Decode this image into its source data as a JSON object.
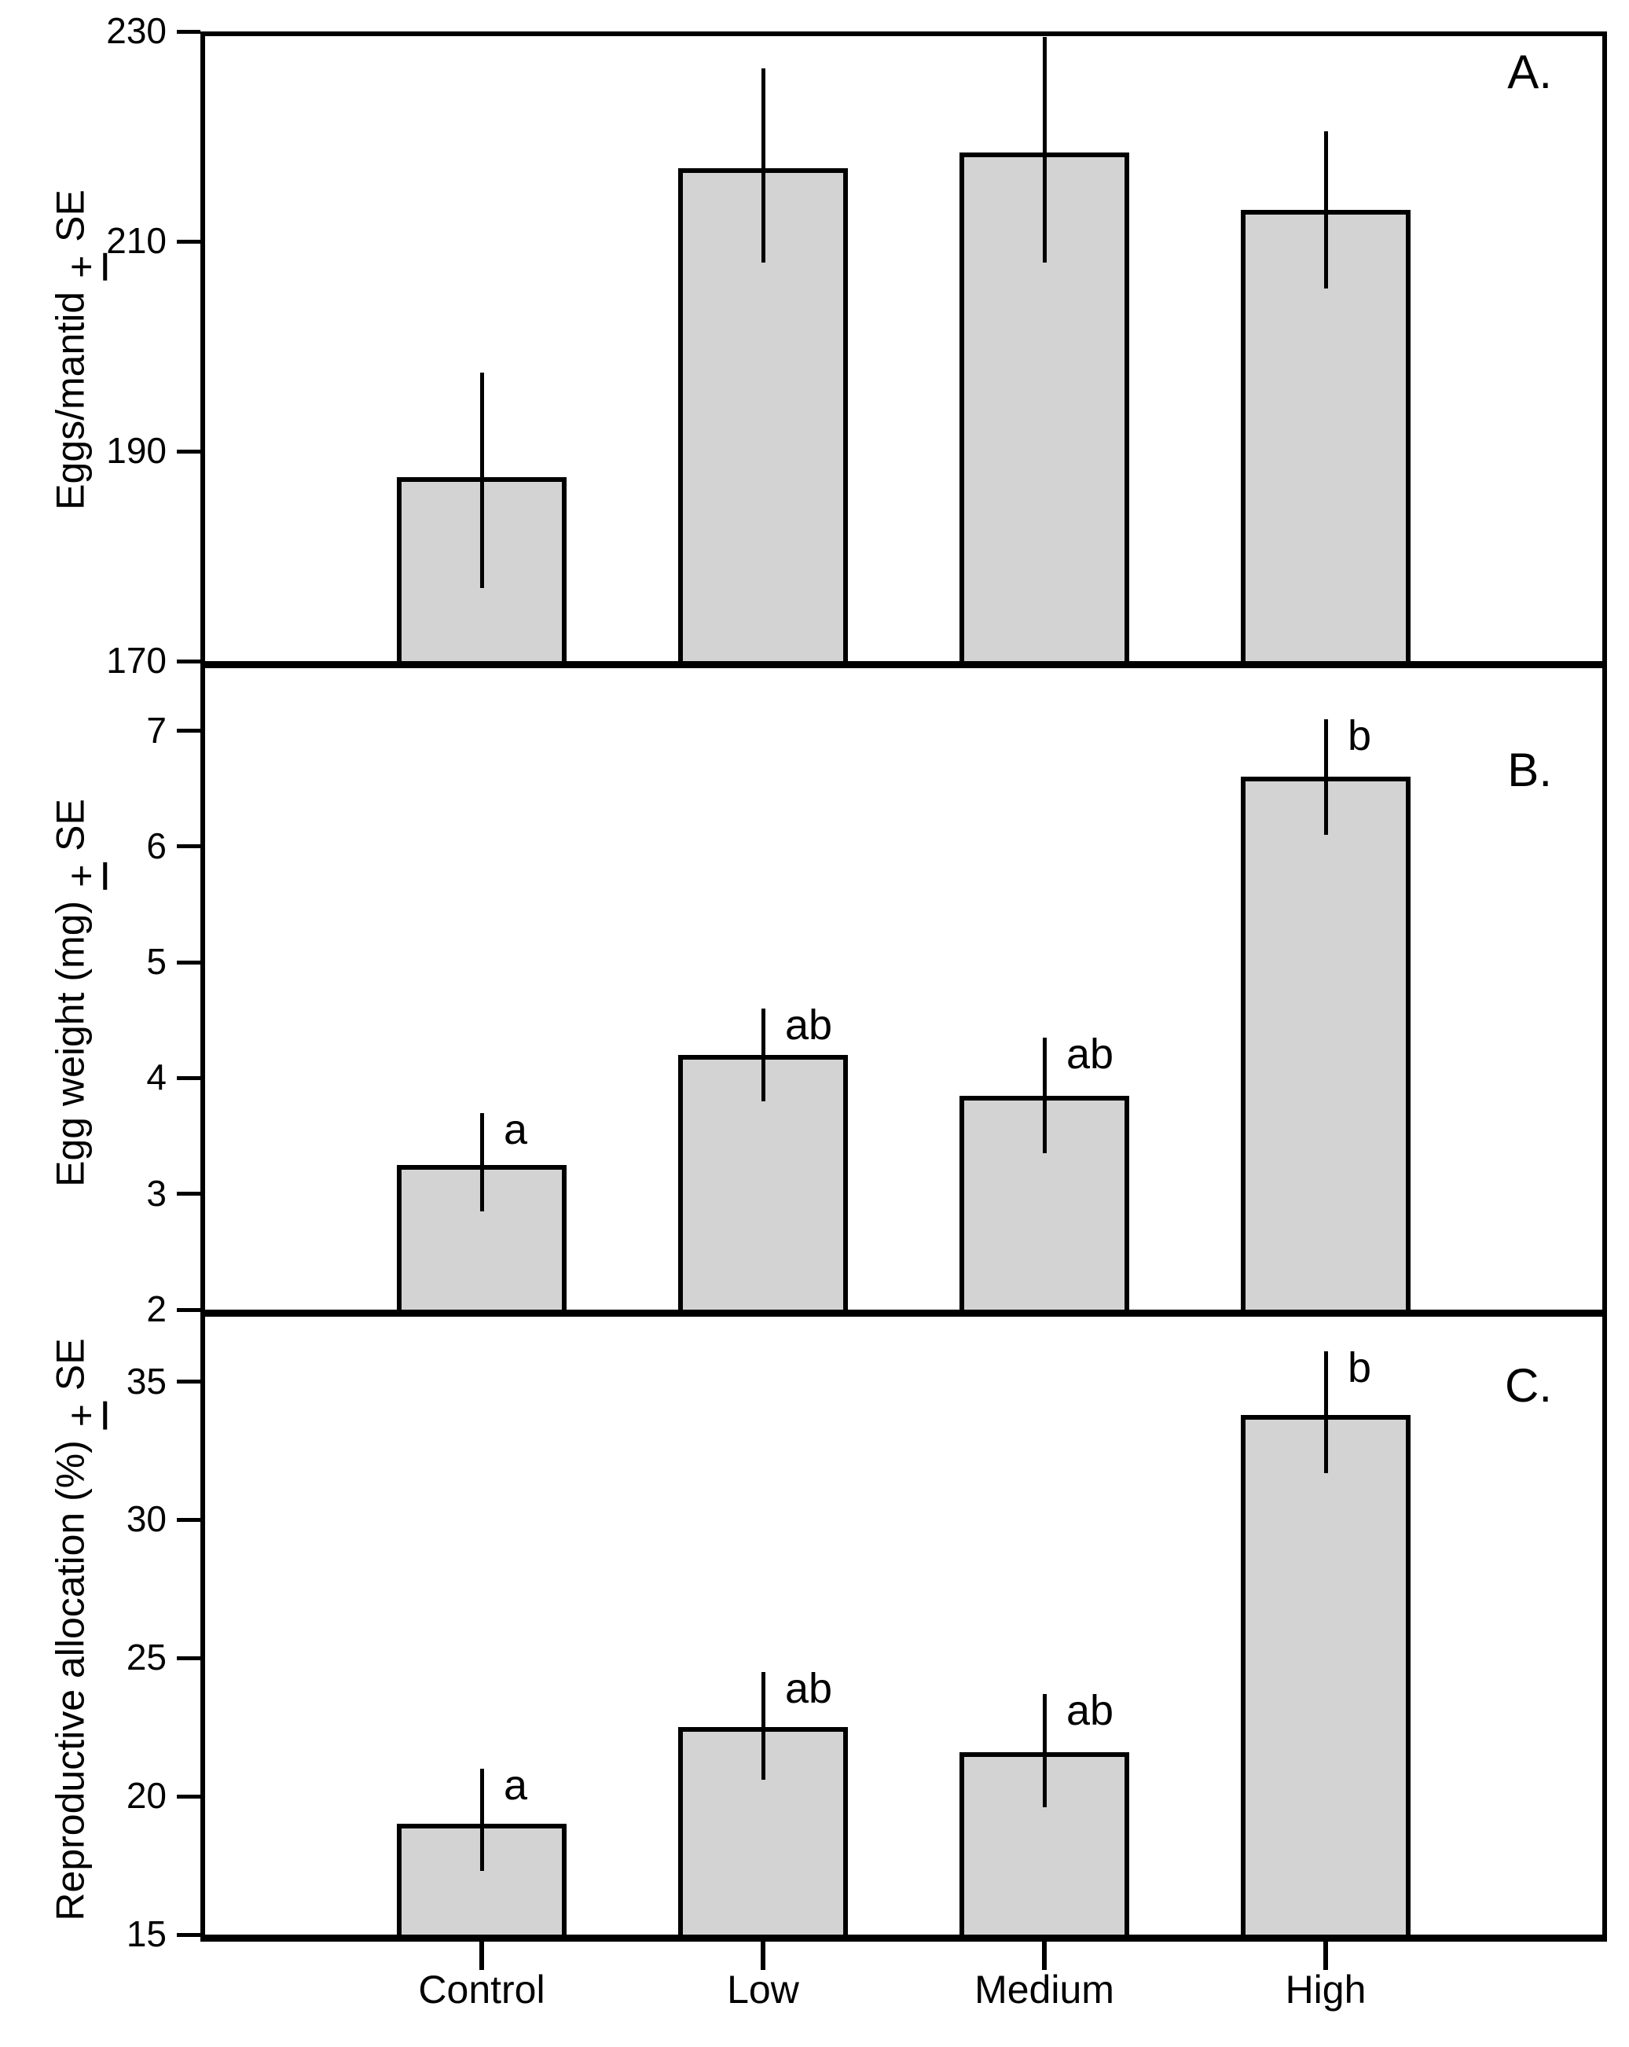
{
  "figure": {
    "background": "#ffffff",
    "bar_fill": "#d3d3d3",
    "bar_border": "#000000",
    "x_categories": [
      "Control",
      "Low",
      "Medium",
      "High"
    ]
  },
  "chart_data": [
    {
      "type": "bar",
      "panel_label": "A.",
      "ylabel": "Eggs/mantid",
      "ylabel_plusminus": "+",
      "ylabel_suffix": "SE",
      "xlabel": "",
      "ylim": [
        170,
        230
      ],
      "yticks": [
        230,
        210,
        190,
        170
      ],
      "categories": [
        "Control",
        "Low",
        "Medium",
        "High"
      ],
      "values": [
        187.5,
        217,
        218.5,
        213
      ],
      "se_upper": [
        197.5,
        226.5,
        229.5,
        220.5
      ],
      "se_lower": [
        177,
        208,
        208,
        205.5
      ],
      "sig_letters": [
        "",
        "",
        "",
        ""
      ]
    },
    {
      "type": "bar",
      "panel_label": "B.",
      "ylabel": "Egg weight (mg)",
      "ylabel_plusminus": "+",
      "ylabel_suffix": "SE",
      "xlabel": "",
      "ylim": [
        2,
        7.54
      ],
      "yticks": [
        7,
        6,
        5,
        4,
        3,
        2
      ],
      "categories": [
        "Control",
        "Low",
        "Medium",
        "High"
      ],
      "values": [
        3.25,
        4.2,
        3.85,
        6.6
      ],
      "se_upper": [
        3.7,
        4.6,
        4.35,
        7.1
      ],
      "se_lower": [
        2.85,
        3.8,
        3.35,
        6.1
      ],
      "sig_letters": [
        "a",
        "ab",
        "ab",
        "b"
      ]
    },
    {
      "type": "bar",
      "panel_label": "C.",
      "ylabel": "Reproductive allocation (%)",
      "ylabel_plusminus": "+",
      "ylabel_suffix": "SE",
      "xlabel": "",
      "ylim": [
        15,
        37.35
      ],
      "yticks": [
        35,
        30,
        25,
        20,
        15
      ],
      "categories": [
        "Control",
        "Low",
        "Medium",
        "High"
      ],
      "values": [
        19,
        22.5,
        21.6,
        33.8
      ],
      "se_upper": [
        21,
        24.5,
        23.7,
        36.1
      ],
      "se_lower": [
        17.3,
        20.6,
        19.6,
        31.7
      ],
      "sig_letters": [
        "a",
        "ab",
        "ab",
        "b"
      ]
    }
  ]
}
